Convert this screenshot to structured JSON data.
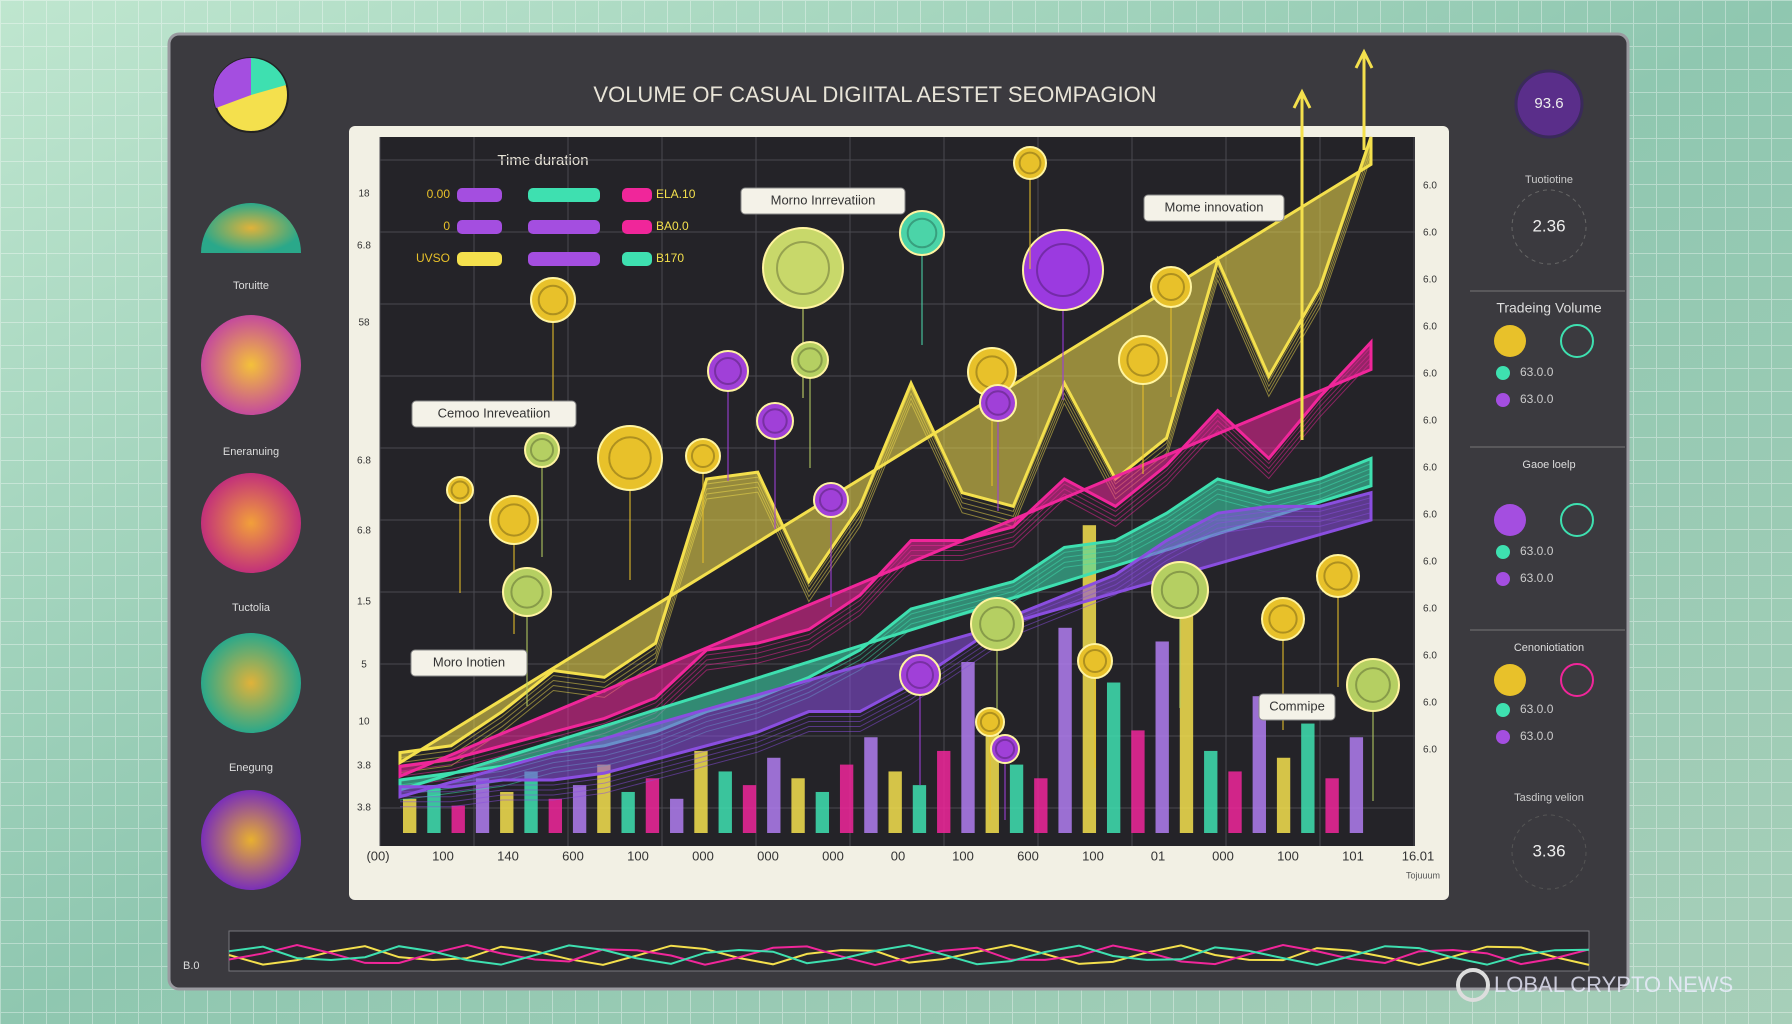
{
  "chart": {
    "title": "VOLUME OF CASUAL DIGIITAL AESTET SEOMPAGION",
    "legend": {
      "title": "Time duration",
      "left": [
        "0.00",
        "0",
        "UVSO"
      ],
      "right": [
        "ELA.10",
        "BA0.0",
        "B170"
      ]
    },
    "annotations": [
      "Morno Inrrevatiion",
      "Mome innovation",
      "Cemoo Inreveatiion",
      "Moro Inotien",
      "Commipe"
    ],
    "x_labels": [
      "(00)",
      "100",
      "140",
      "600",
      "100",
      "000",
      "000",
      "000",
      "00",
      "100",
      "600",
      "100",
      "01",
      "000",
      "100",
      "101",
      "16.01"
    ],
    "y_labels_left": [
      "18",
      "6.8",
      "58",
      "6.8",
      "6.8",
      "1.5",
      "5",
      "10",
      "3.8",
      "3.8"
    ],
    "y_labels_right": [
      "6.0",
      "6.0",
      "6.0",
      "6.0",
      "6.0",
      "6.0",
      "6.0",
      "6.0",
      "6.0",
      "6.0",
      "6.0",
      "6.0",
      "6.0"
    ],
    "corner_left": "B.0",
    "corner_right": "Tojuuum",
    "series": [
      {
        "color": "#f4e04d",
        "values": [
          10,
          11,
          16,
          22,
          21,
          26,
          50,
          51,
          35,
          46,
          64,
          48,
          46,
          64,
          50,
          56,
          82,
          65,
          78,
          100
        ]
      },
      {
        "color": "#f0269a",
        "values": [
          8,
          9,
          11,
          13,
          15,
          18,
          25,
          26,
          28,
          33,
          41,
          41,
          43,
          50,
          46,
          52,
          60,
          53,
          62,
          70
        ]
      },
      {
        "color": "#3ee0b0",
        "values": [
          6,
          7,
          8,
          10,
          11,
          13,
          16,
          18,
          21,
          25,
          31,
          33,
          35,
          40,
          41,
          45,
          50,
          48,
          50,
          53
        ]
      },
      {
        "color": "#8a4ee0",
        "values": [
          5,
          5,
          6,
          6,
          7,
          9,
          11,
          13,
          16,
          16,
          20,
          25,
          30,
          33,
          36,
          41,
          45,
          46,
          46,
          48
        ]
      }
    ],
    "bar_colors": [
      "#f4e04d",
      "#3ee0b0",
      "#f0269a",
      "#b07cf0"
    ],
    "bars": [
      5,
      7,
      4,
      8,
      6,
      9,
      5,
      7,
      10,
      6,
      8,
      5,
      12,
      9,
      7,
      11,
      8,
      6,
      10,
      14,
      9,
      7,
      12,
      25,
      18,
      10,
      8,
      30,
      45,
      22,
      15,
      28,
      38,
      12,
      9,
      20,
      11,
      16,
      8,
      14
    ]
  },
  "left_panel": {
    "labels": [
      "Toruitte",
      "Eneranuing",
      "Tuctolia",
      "Enegung"
    ]
  },
  "right_panel": {
    "badge": "93.6",
    "label1": "Tuotiotine",
    "value1": "2.36",
    "section1": "Tradeing Volume",
    "section2": "Gaoe loelp",
    "section3": "Cenoniotiation",
    "label2": "Tasding velion",
    "value2": "3.36",
    "rows": [
      "63.0.0",
      "63.0.0",
      "63.0.0",
      "63.0.0",
      "63.0.0",
      "63.0.0"
    ]
  },
  "watermark": "LOBAL CRYPTO NEWS"
}
